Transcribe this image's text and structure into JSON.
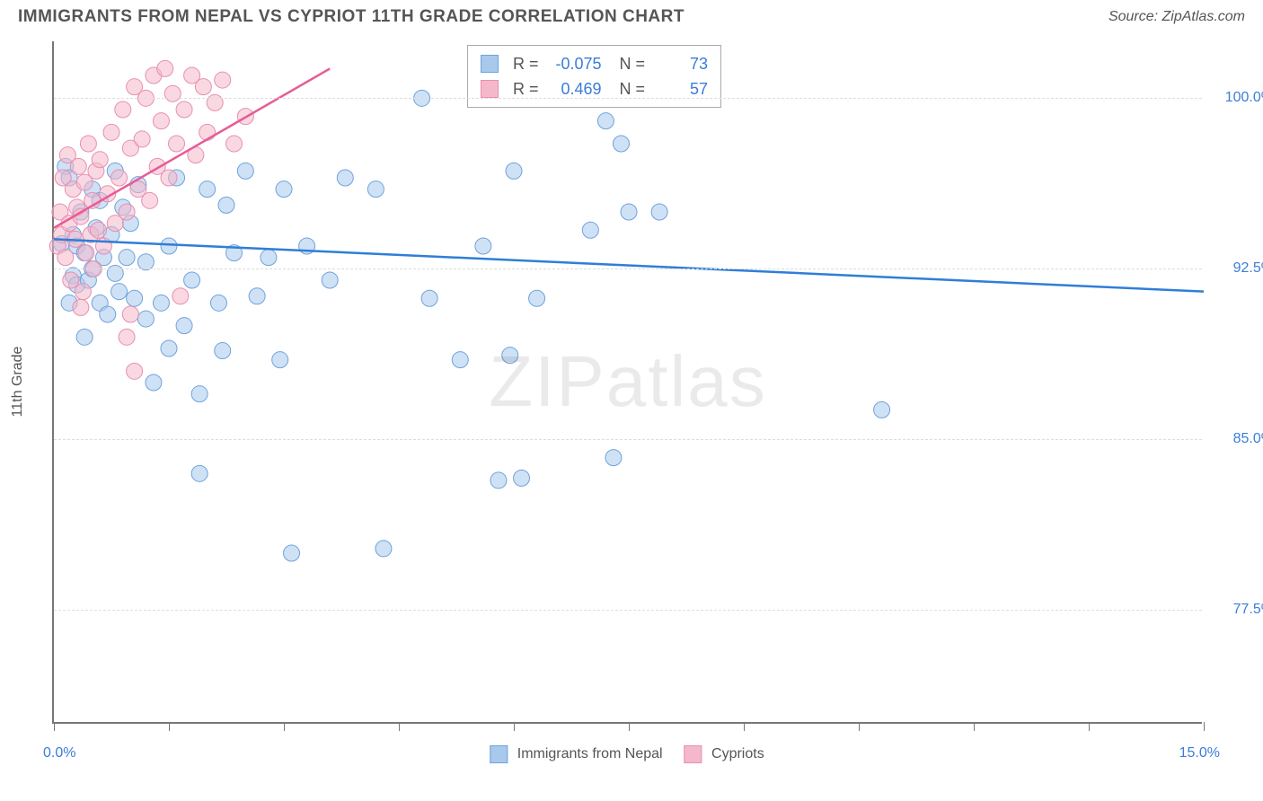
{
  "title": "IMMIGRANTS FROM NEPAL VS CYPRIOT 11TH GRADE CORRELATION CHART",
  "source": "Source: ZipAtlas.com",
  "watermark_bold": "ZIP",
  "watermark_thin": "atlas",
  "chart": {
    "type": "scatter",
    "ylabel": "11th Grade",
    "xlim": [
      0.0,
      15.0
    ],
    "ylim": [
      72.5,
      102.5
    ],
    "x_tick_positions": [
      0,
      1.5,
      3.0,
      4.5,
      6.0,
      7.5,
      9.0,
      10.5,
      12.0,
      13.5,
      15.0
    ],
    "y_gridlines": [
      77.5,
      85.0,
      92.5,
      100.0
    ],
    "y_tick_labels": [
      "77.5%",
      "85.0%",
      "92.5%",
      "100.0%"
    ],
    "x_min_label": "0.0%",
    "x_max_label": "15.0%",
    "background_color": "#ffffff",
    "grid_color": "#dddddd",
    "axis_color": "#777777",
    "series": [
      {
        "name": "Immigrants from Nepal",
        "marker_color": "#a8c8ec",
        "marker_border": "#6fa3dc",
        "line_color": "#2f7ed8",
        "marker_radius": 9,
        "opacity": 0.55,
        "R": "-0.075",
        "N": "73",
        "trend": {
          "x1": 0.0,
          "y1": 93.8,
          "x2": 15.0,
          "y2": 91.5
        },
        "points": [
          [
            0.1,
            93.6
          ],
          [
            0.15,
            97.0
          ],
          [
            0.2,
            91.0
          ],
          [
            0.2,
            96.5
          ],
          [
            0.25,
            94.0
          ],
          [
            0.25,
            92.2
          ],
          [
            0.3,
            93.5
          ],
          [
            0.3,
            91.8
          ],
          [
            0.35,
            95.0
          ],
          [
            0.4,
            93.2
          ],
          [
            0.4,
            89.5
          ],
          [
            0.45,
            92.0
          ],
          [
            0.5,
            96.0
          ],
          [
            0.5,
            92.5
          ],
          [
            0.55,
            94.3
          ],
          [
            0.6,
            91.0
          ],
          [
            0.6,
            95.5
          ],
          [
            0.65,
            93.0
          ],
          [
            0.7,
            90.5
          ],
          [
            0.75,
            94.0
          ],
          [
            0.8,
            96.8
          ],
          [
            0.8,
            92.3
          ],
          [
            0.85,
            91.5
          ],
          [
            0.9,
            95.2
          ],
          [
            0.95,
            93.0
          ],
          [
            1.0,
            94.5
          ],
          [
            1.05,
            91.2
          ],
          [
            1.1,
            96.2
          ],
          [
            1.2,
            90.3
          ],
          [
            1.2,
            92.8
          ],
          [
            1.3,
            87.5
          ],
          [
            1.4,
            91.0
          ],
          [
            1.5,
            93.5
          ],
          [
            1.5,
            89.0
          ],
          [
            1.6,
            96.5
          ],
          [
            1.7,
            90.0
          ],
          [
            1.8,
            92.0
          ],
          [
            1.9,
            87.0
          ],
          [
            1.9,
            83.5
          ],
          [
            2.0,
            96.0
          ],
          [
            2.15,
            91.0
          ],
          [
            2.2,
            88.9
          ],
          [
            2.25,
            95.3
          ],
          [
            2.35,
            93.2
          ],
          [
            2.5,
            96.8
          ],
          [
            2.65,
            91.3
          ],
          [
            2.8,
            93.0
          ],
          [
            2.95,
            88.5
          ],
          [
            3.0,
            96.0
          ],
          [
            3.1,
            80.0
          ],
          [
            3.3,
            93.5
          ],
          [
            3.6,
            92.0
          ],
          [
            3.8,
            96.5
          ],
          [
            4.2,
            96.0
          ],
          [
            4.3,
            80.2
          ],
          [
            4.8,
            100.0
          ],
          [
            4.9,
            91.2
          ],
          [
            5.3,
            88.5
          ],
          [
            5.6,
            93.5
          ],
          [
            5.8,
            83.2
          ],
          [
            5.95,
            88.7
          ],
          [
            6.0,
            96.8
          ],
          [
            6.1,
            83.3
          ],
          [
            6.3,
            100.1
          ],
          [
            6.3,
            91.2
          ],
          [
            7.2,
            99.0
          ],
          [
            7.3,
            84.2
          ],
          [
            7.4,
            98.0
          ],
          [
            7.5,
            95.0
          ],
          [
            7.6,
            100.1
          ],
          [
            7.9,
            95.0
          ],
          [
            10.8,
            86.3
          ],
          [
            7.0,
            94.2
          ]
        ]
      },
      {
        "name": "Cypriots",
        "marker_color": "#f4b8ca",
        "marker_border": "#e88fb0",
        "line_color": "#e85b95",
        "marker_radius": 9,
        "opacity": 0.55,
        "R": "0.469",
        "N": "57",
        "trend": {
          "x1": 0.0,
          "y1": 94.3,
          "x2": 3.6,
          "y2": 101.3
        },
        "points": [
          [
            0.05,
            93.5
          ],
          [
            0.08,
            95.0
          ],
          [
            0.1,
            94.0
          ],
          [
            0.12,
            96.5
          ],
          [
            0.15,
            93.0
          ],
          [
            0.18,
            97.5
          ],
          [
            0.2,
            94.5
          ],
          [
            0.22,
            92.0
          ],
          [
            0.25,
            96.0
          ],
          [
            0.28,
            93.8
          ],
          [
            0.3,
            95.2
          ],
          [
            0.32,
            97.0
          ],
          [
            0.35,
            94.8
          ],
          [
            0.38,
            91.5
          ],
          [
            0.4,
            96.3
          ],
          [
            0.42,
            93.2
          ],
          [
            0.45,
            98.0
          ],
          [
            0.48,
            94.0
          ],
          [
            0.5,
            95.5
          ],
          [
            0.52,
            92.5
          ],
          [
            0.55,
            96.8
          ],
          [
            0.58,
            94.2
          ],
          [
            0.6,
            97.3
          ],
          [
            0.65,
            93.5
          ],
          [
            0.7,
            95.8
          ],
          [
            0.75,
            98.5
          ],
          [
            0.8,
            94.5
          ],
          [
            0.85,
            96.5
          ],
          [
            0.9,
            99.5
          ],
          [
            0.95,
            95.0
          ],
          [
            1.0,
            97.8
          ],
          [
            1.0,
            90.5
          ],
          [
            1.05,
            100.5
          ],
          [
            1.1,
            96.0
          ],
          [
            1.15,
            98.2
          ],
          [
            1.2,
            100.0
          ],
          [
            1.25,
            95.5
          ],
          [
            1.3,
            101.0
          ],
          [
            1.35,
            97.0
          ],
          [
            1.4,
            99.0
          ],
          [
            1.45,
            101.3
          ],
          [
            1.5,
            96.5
          ],
          [
            1.55,
            100.2
          ],
          [
            1.6,
            98.0
          ],
          [
            1.65,
            91.3
          ],
          [
            1.7,
            99.5
          ],
          [
            1.8,
            101.0
          ],
          [
            1.85,
            97.5
          ],
          [
            1.95,
            100.5
          ],
          [
            2.0,
            98.5
          ],
          [
            2.1,
            99.8
          ],
          [
            2.2,
            100.8
          ],
          [
            2.35,
            98.0
          ],
          [
            2.5,
            99.2
          ],
          [
            0.35,
            90.8
          ],
          [
            0.95,
            89.5
          ],
          [
            1.05,
            88.0
          ]
        ]
      }
    ],
    "bottom_legend": [
      {
        "label": "Immigrants from Nepal",
        "fill": "#a8c8ec",
        "border": "#6fa3dc"
      },
      {
        "label": "Cypriots",
        "fill": "#f4b8ca",
        "border": "#e88fb0"
      }
    ]
  }
}
